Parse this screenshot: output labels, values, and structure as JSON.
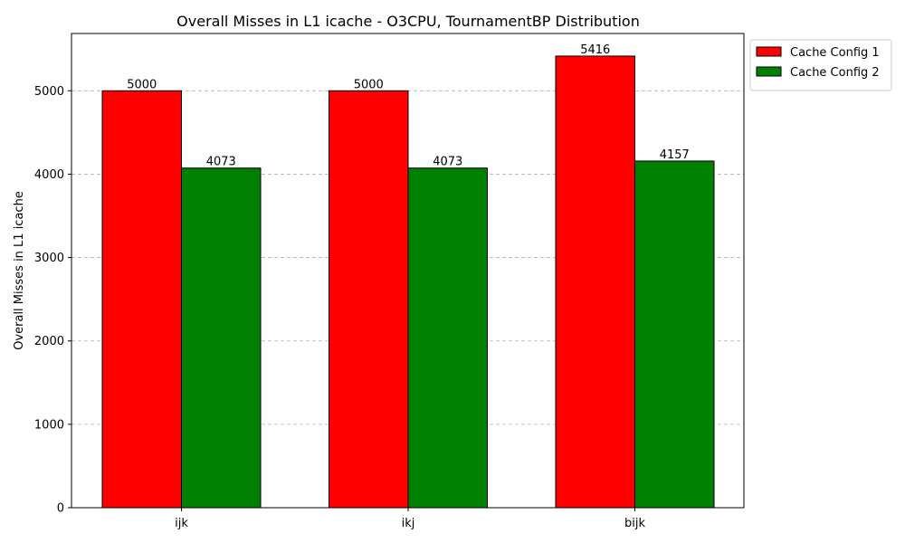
{
  "chart_data": {
    "type": "bar",
    "title": "Overall Misses in L1 icache - O3CPU, TournamentBP Distribution",
    "xlabel": "",
    "ylabel": "Overall Misses in L1 icache",
    "categories": [
      "ijk",
      "ikj",
      "bijk"
    ],
    "series": [
      {
        "name": "Cache Config 1",
        "color": "#ff0000",
        "values": [
          5000,
          5000,
          5416
        ]
      },
      {
        "name": "Cache Config 2",
        "color": "#008000",
        "values": [
          4073,
          4073,
          4157
        ]
      }
    ],
    "ylim": [
      0,
      5687
    ],
    "yticks": [
      0,
      1000,
      2000,
      3000,
      4000,
      5000
    ],
    "grid": "horizontal dashed",
    "legend": "outside top-right",
    "data_labels": true
  }
}
